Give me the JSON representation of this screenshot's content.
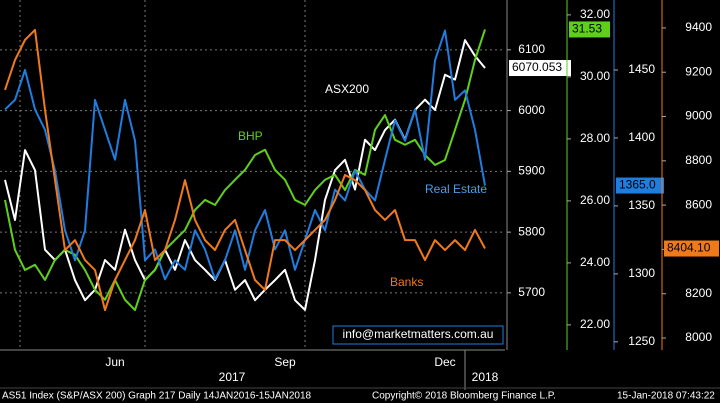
{
  "chart_data": {
    "type": "line",
    "categories": [
      null,
      null,
      null,
      null,
      null,
      null,
      null,
      null,
      null,
      null,
      null,
      "Jun",
      null,
      null,
      null,
      null,
      null,
      null,
      null,
      null,
      null,
      null,
      null,
      null,
      null,
      null,
      null,
      null,
      "Sep",
      null,
      null,
      null,
      null,
      null,
      null,
      null,
      null,
      null,
      null,
      null,
      null,
      null,
      null,
      null,
      "Dec",
      null,
      null,
      null,
      null
    ],
    "x_groups": [
      "2017",
      "2018"
    ],
    "series": [
      {
        "name": "ASX200",
        "color": "#ffffff",
        "label_color": "#ffffff",
        "last_label": "6070.053",
        "ylim": [
          5606,
          6182
        ],
        "yticks": [
          5700,
          5800,
          5900,
          6000,
          6100
        ],
        "values": [
          5886,
          5820,
          5935,
          5902,
          5771,
          5754,
          5771,
          5721,
          5688,
          5705,
          5754,
          5738,
          5804,
          5754,
          5721,
          5738,
          5771,
          5738,
          5787,
          5754,
          5738,
          5721,
          5754,
          5705,
          5721,
          5688,
          5705,
          5721,
          5738,
          5688,
          5672,
          5754,
          5853,
          5902,
          5919,
          5870,
          5952,
          5935,
          5968,
          5985,
          5952,
          6001,
          6018,
          6001,
          6059,
          6051,
          6116,
          6090,
          6070.053
        ]
      },
      {
        "name": "BHP",
        "color": "#5fd01a",
        "label_color": "#5fd01a",
        "last_label": "31.53",
        "ylim": [
          21.19,
          32.48
        ],
        "yticks": [
          {
            "value": 22,
            "label": "22.00"
          },
          {
            "value": 24,
            "label": "24.00"
          },
          {
            "value": 26,
            "label": "26.00"
          },
          {
            "value": 28,
            "label": "28.00"
          },
          {
            "value": 30,
            "label": "30.00"
          },
          {
            "value": 32,
            "label": "32.00"
          }
        ],
        "values": [
          26.03,
          24.42,
          23.77,
          23.94,
          23.45,
          24.1,
          24.42,
          24.26,
          23.77,
          23.13,
          22.81,
          23.45,
          22.81,
          22.48,
          23.45,
          23.77,
          24.42,
          24.74,
          25.06,
          25.71,
          26.03,
          25.87,
          26.35,
          26.68,
          27.0,
          27.48,
          27.65,
          27.0,
          26.68,
          26.03,
          25.87,
          26.35,
          26.68,
          26.84,
          26.35,
          27.0,
          26.84,
          28.29,
          28.77,
          27.97,
          27.81,
          27.97,
          27.48,
          27.16,
          27.32,
          28.29,
          29.26,
          30.55,
          31.53
        ]
      },
      {
        "name": "Real Estate",
        "color": "#1f7de0",
        "label_color": "#4a9df0",
        "last_label": "1365.0",
        "ylim": [
          1244,
          1501.5
        ],
        "yticks": [
          1250,
          1300,
          1350,
          1400,
          1450
        ],
        "values": [
          1421,
          1428,
          1450,
          1421,
          1406,
          1376,
          1332,
          1310,
          1332,
          1428,
          1406,
          1384,
          1428,
          1398,
          1310,
          1318,
          1296,
          1310,
          1303,
          1332,
          1318,
          1296,
          1310,
          1332,
          1303,
          1332,
          1347,
          1318,
          1332,
          1303,
          1325,
          1347,
          1332,
          1362,
          1354,
          1376,
          1362,
          1354,
          1384,
          1413,
          1398,
          1421,
          1384,
          1457,
          1479,
          1428,
          1435,
          1406,
          1365
        ]
      },
      {
        "name": "Banks",
        "color": "#f07a1a",
        "label_color": "#f07a1a",
        "last_label": "8404.10",
        "ylim": [
          7946,
          9526
        ],
        "yticks": [
          8000,
          8200,
          8400,
          8600,
          8800,
          9000,
          9200,
          9400
        ],
        "values": [
          9120,
          9255,
          9346,
          9391,
          9030,
          8713,
          8397,
          8442,
          8352,
          8307,
          8126,
          8262,
          8352,
          8442,
          8578,
          8352,
          8397,
          8533,
          8713,
          8533,
          8442,
          8397,
          8488,
          8533,
          8397,
          8262,
          8217,
          8442,
          8442,
          8397,
          8442,
          8488,
          8533,
          8623,
          8736,
          8713,
          8668,
          8578,
          8533,
          8578,
          8442,
          8442,
          8352,
          8442,
          8397,
          8442,
          8397,
          8488,
          8404.1
        ]
      }
    ],
    "watermark": "info@marketmatters.com.au",
    "footer": {
      "left": "AS51 Index (S&P/ASX 200) Graph 217  Daily 14JAN2016-15JAN2018",
      "center": "Copyright© 2018 Bloomberg Finance L.P.",
      "right": "15-Jan-2018 07:43:22"
    }
  }
}
